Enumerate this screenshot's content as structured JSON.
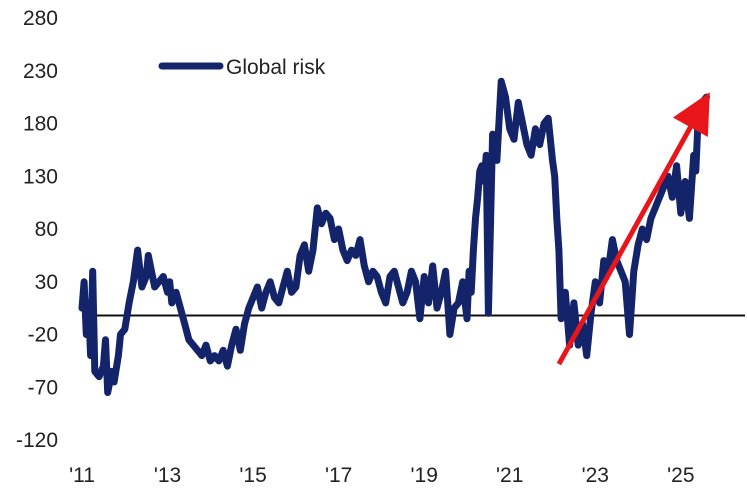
{
  "chart_data": {
    "type": "line",
    "title": "",
    "xlabel": "",
    "ylabel": "",
    "xlim": [
      2011.0,
      2026.5
    ],
    "ylim": [
      -120,
      280
    ],
    "y_ticks": [
      280,
      230,
      180,
      130,
      80,
      30,
      -20,
      -70,
      -120
    ],
    "x_ticks": [
      {
        "year": 2011,
        "label": "'11"
      },
      {
        "year": 2013,
        "label": "'13"
      },
      {
        "year": 2015,
        "label": "'15"
      },
      {
        "year": 2017,
        "label": "'17"
      },
      {
        "year": 2019,
        "label": "'19"
      },
      {
        "year": 2021,
        "label": "'21"
      },
      {
        "year": 2023,
        "label": "'23"
      },
      {
        "year": 2025,
        "label": "'25"
      }
    ],
    "legend": {
      "position": "top-left"
    },
    "reference_line": {
      "y": -2,
      "color": "#111111"
    },
    "series": [
      {
        "name": "Global risk",
        "color": "#14246b",
        "x": [
          2011.0,
          2011.05,
          2011.1,
          2011.15,
          2011.2,
          2011.25,
          2011.3,
          2011.4,
          2011.5,
          2011.55,
          2011.6,
          2011.7,
          2011.75,
          2011.85,
          2011.9,
          2012.0,
          2012.1,
          2012.2,
          2012.3,
          2012.4,
          2012.5,
          2012.55,
          2012.6,
          2012.7,
          2012.8,
          2012.9,
          2013.0,
          2013.05,
          2013.1,
          2013.2,
          2013.3,
          2013.4,
          2013.5,
          2013.6,
          2013.7,
          2013.8,
          2013.9,
          2014.0,
          2014.1,
          2014.2,
          2014.3,
          2014.4,
          2014.5,
          2014.6,
          2014.7,
          2014.8,
          2014.9,
          2015.0,
          2015.1,
          2015.2,
          2015.3,
          2015.4,
          2015.5,
          2015.6,
          2015.7,
          2015.8,
          2015.9,
          2016.0,
          2016.1,
          2016.2,
          2016.3,
          2016.4,
          2016.5,
          2016.6,
          2016.7,
          2016.8,
          2016.9,
          2017.0,
          2017.1,
          2017.2,
          2017.3,
          2017.4,
          2017.5,
          2017.6,
          2017.7,
          2017.8,
          2017.9,
          2018.0,
          2018.1,
          2018.2,
          2018.3,
          2018.4,
          2018.5,
          2018.6,
          2018.7,
          2018.8,
          2018.9,
          2019.0,
          2019.1,
          2019.2,
          2019.3,
          2019.4,
          2019.5,
          2019.6,
          2019.7,
          2019.8,
          2019.9,
          2020.0,
          2020.05,
          2020.1,
          2020.15,
          2020.2,
          2020.25,
          2020.3,
          2020.35,
          2020.4,
          2020.45,
          2020.5,
          2020.6,
          2020.7,
          2020.8,
          2020.9,
          2021.0,
          2021.1,
          2021.2,
          2021.3,
          2021.4,
          2021.5,
          2021.6,
          2021.7,
          2021.8,
          2021.9,
          2022.0,
          2022.05,
          2022.1,
          2022.15,
          2022.2,
          2022.3,
          2022.4,
          2022.5,
          2022.6,
          2022.7,
          2022.8,
          2022.9,
          2023.0,
          2023.1,
          2023.2,
          2023.3,
          2023.4,
          2023.5,
          2023.6,
          2023.7,
          2023.8,
          2023.9,
          2024.0,
          2024.1,
          2024.2,
          2024.3,
          2024.4,
          2024.5,
          2024.6,
          2024.7,
          2024.8,
          2024.9,
          2025.0,
          2025.1,
          2025.2,
          2025.3,
          2025.35,
          2025.4,
          2025.5,
          2025.6
        ],
        "y": [
          5,
          30,
          -20,
          10,
          -40,
          40,
          -55,
          -60,
          -50,
          -25,
          -75,
          -55,
          -65,
          -40,
          -20,
          -15,
          10,
          30,
          60,
          25,
          35,
          55,
          45,
          25,
          30,
          35,
          20,
          30,
          10,
          20,
          5,
          -10,
          -25,
          -30,
          -35,
          -40,
          -30,
          -45,
          -40,
          -45,
          -35,
          -50,
          -30,
          -15,
          -35,
          -10,
          5,
          15,
          25,
          5,
          20,
          30,
          15,
          10,
          25,
          40,
          20,
          25,
          55,
          65,
          40,
          60,
          100,
          85,
          95,
          90,
          70,
          80,
          60,
          50,
          60,
          55,
          70,
          45,
          30,
          40,
          35,
          20,
          10,
          35,
          40,
          25,
          10,
          20,
          40,
          30,
          -5,
          35,
          10,
          45,
          5,
          20,
          40,
          -20,
          5,
          10,
          30,
          -5,
          40,
          20,
          60,
          90,
          110,
          135,
          140,
          125,
          150,
          0,
          170,
          145,
          220,
          205,
          175,
          165,
          200,
          180,
          160,
          150,
          175,
          160,
          180,
          185,
          145,
          130,
          90,
          60,
          -5,
          20,
          -30,
          10,
          -30,
          -10,
          -40,
          0,
          30,
          10,
          50,
          40,
          70,
          50,
          40,
          30,
          -20,
          40,
          65,
          80,
          70,
          90,
          100,
          110,
          120,
          130,
          110,
          140,
          95,
          125,
          90,
          150,
          135,
          180,
          200,
          205
        ],
        "line_width": 7
      }
    ],
    "annotations": [
      {
        "type": "arrow",
        "label": "",
        "color": "#e8161b",
        "from": {
          "x": 2022.15,
          "y": -48
        },
        "to": {
          "x": 2025.45,
          "y": 193
        }
      }
    ]
  }
}
